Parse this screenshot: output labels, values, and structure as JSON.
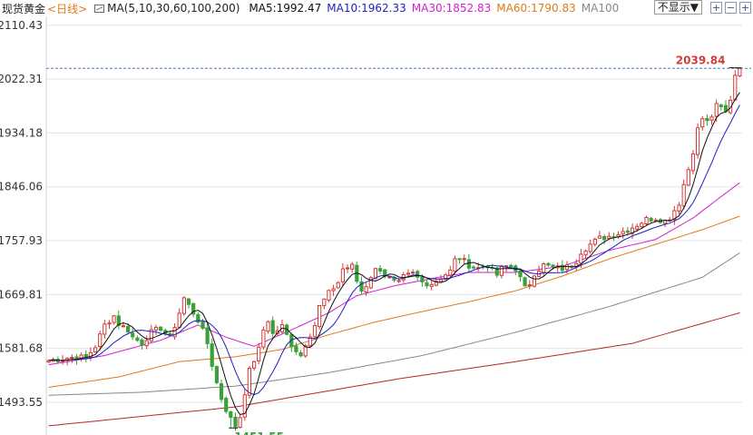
{
  "legend": {
    "instrument": "现货黄金",
    "period": "<日线>",
    "ma_main": "MA(5,10,30,60,100,200)",
    "items": [
      {
        "label": "MA5:1992.47",
        "color": "#111111"
      },
      {
        "label": "MA10:1962.33",
        "color": "#1f1fbf"
      },
      {
        "label": "MA30:1852.83",
        "color": "#d21ed2"
      },
      {
        "label": "MA60:1790.83",
        "color": "#e07b1a"
      },
      {
        "label": "MA100",
        "color": "#888888"
      }
    ]
  },
  "controls": {
    "dropdown_label": "不显示▼",
    "buttons": [
      "zoom-in",
      "zoom-out",
      "fit"
    ]
  },
  "colors": {
    "up": "#d23a3a",
    "down": "#3aa03a",
    "ma5": "#111111",
    "ma10": "#1f1fbf",
    "ma30": "#d21ed2",
    "ma60": "#e07b1a",
    "ma100": "#888888",
    "ma200": "#b42828",
    "grid": "#e3e3e3",
    "last_line": "#4a7ab8",
    "axis_text": "#333333",
    "high_label": "#d23a3a",
    "low_label": "#3aa03a"
  },
  "chart_data": {
    "type": "candlestick",
    "title": "现货黄金 <日线>",
    "ylim": [
      1440,
      2125
    ],
    "y_ticks": [
      2110.43,
      2022.31,
      1934.18,
      1846.06,
      1757.93,
      1669.81,
      1581.68,
      1493.55
    ],
    "grid": true,
    "last_value": 2039.84,
    "high_label": "2039.84",
    "low_label": "1451.55",
    "series_ma": [
      {
        "name": "MA5",
        "value": 1992.47
      },
      {
        "name": "MA10",
        "value": 1962.33
      },
      {
        "name": "MA30",
        "value": 1852.83
      },
      {
        "name": "MA60",
        "value": 1790.83
      },
      {
        "name": "MA100"
      },
      {
        "name": "MA200"
      }
    ],
    "close_path": [
      [
        0,
        1562
      ],
      [
        6,
        1568
      ],
      [
        8,
        1566
      ],
      [
        10,
        1585
      ],
      [
        12,
        1620
      ],
      [
        14,
        1635
      ],
      [
        15,
        1622
      ],
      [
        17,
        1612
      ],
      [
        18,
        1600
      ],
      [
        20,
        1590
      ],
      [
        22,
        1608
      ],
      [
        24,
        1615
      ],
      [
        26,
        1598
      ],
      [
        28,
        1640
      ],
      [
        29,
        1664
      ],
      [
        30,
        1652
      ],
      [
        32,
        1628
      ],
      [
        33,
        1610
      ],
      [
        34,
        1590
      ],
      [
        35,
        1555
      ],
      [
        36,
        1525
      ],
      [
        37,
        1500
      ],
      [
        38,
        1482
      ],
      [
        39,
        1466
      ],
      [
        40,
        1455
      ],
      [
        41,
        1470
      ],
      [
        42,
        1510
      ],
      [
        43,
        1545
      ],
      [
        45,
        1580
      ],
      [
        46,
        1612
      ],
      [
        47,
        1628
      ],
      [
        48,
        1605
      ],
      [
        50,
        1618
      ],
      [
        52,
        1588
      ],
      [
        54,
        1570
      ],
      [
        55,
        1590
      ],
      [
        57,
        1620
      ],
      [
        58,
        1650
      ],
      [
        60,
        1672
      ],
      [
        62,
        1690
      ],
      [
        63,
        1712
      ],
      [
        65,
        1716
      ],
      [
        66,
        1692
      ],
      [
        67,
        1676
      ],
      [
        68,
        1685
      ],
      [
        69,
        1700
      ],
      [
        70,
        1710
      ],
      [
        71,
        1712
      ],
      [
        72,
        1702
      ],
      [
        74,
        1690
      ],
      [
        75,
        1688
      ],
      [
        76,
        1698
      ],
      [
        78,
        1704
      ],
      [
        80,
        1690
      ],
      [
        82,
        1688
      ],
      [
        84,
        1698
      ],
      [
        86,
        1708
      ],
      [
        87,
        1726
      ],
      [
        88,
        1730
      ],
      [
        90,
        1718
      ],
      [
        92,
        1713
      ],
      [
        94,
        1718
      ],
      [
        95,
        1708
      ],
      [
        96,
        1702
      ],
      [
        97,
        1713
      ],
      [
        98,
        1716
      ],
      [
        99,
        1715
      ],
      [
        100,
        1712
      ],
      [
        101,
        1696
      ],
      [
        102,
        1680
      ],
      [
        103,
        1688
      ],
      [
        104,
        1705
      ],
      [
        106,
        1718
      ],
      [
        108,
        1714
      ],
      [
        110,
        1712
      ],
      [
        112,
        1718
      ],
      [
        113,
        1725
      ],
      [
        114,
        1740
      ],
      [
        116,
        1752
      ],
      [
        118,
        1762
      ],
      [
        120,
        1765
      ],
      [
        122,
        1770
      ],
      [
        124,
        1776
      ],
      [
        126,
        1784
      ],
      [
        128,
        1793
      ],
      [
        130,
        1795
      ],
      [
        132,
        1790
      ],
      [
        133,
        1796
      ],
      [
        135,
        1820
      ],
      [
        136,
        1850
      ],
      [
        137,
        1875
      ],
      [
        138,
        1905
      ],
      [
        139,
        1940
      ],
      [
        140,
        1958
      ],
      [
        141,
        1952
      ],
      [
        142,
        1962
      ],
      [
        143,
        1978
      ],
      [
        144,
        1975
      ],
      [
        145,
        1968
      ],
      [
        146,
        1990
      ],
      [
        147,
        2030
      ],
      [
        148,
        2039.84
      ]
    ],
    "ma200": [
      [
        0,
        1455
      ],
      [
        40,
        1486
      ],
      [
        75,
        1532
      ],
      [
        100,
        1560
      ],
      [
        125,
        1590
      ],
      [
        148,
        1640
      ]
    ],
    "ma100": [
      [
        0,
        1505
      ],
      [
        20,
        1510
      ],
      [
        40,
        1520
      ],
      [
        60,
        1542
      ],
      [
        80,
        1570
      ],
      [
        100,
        1608
      ],
      [
        120,
        1650
      ],
      [
        140,
        1698
      ],
      [
        148,
        1738
      ]
    ],
    "ma60": [
      [
        0,
        1518
      ],
      [
        15,
        1535
      ],
      [
        28,
        1560
      ],
      [
        40,
        1568
      ],
      [
        50,
        1580
      ],
      [
        60,
        1604
      ],
      [
        70,
        1625
      ],
      [
        80,
        1642
      ],
      [
        90,
        1658
      ],
      [
        100,
        1676
      ],
      [
        110,
        1700
      ],
      [
        120,
        1728
      ],
      [
        130,
        1752
      ],
      [
        140,
        1776
      ],
      [
        148,
        1798
      ]
    ],
    "ma30": [
      [
        0,
        1555
      ],
      [
        12,
        1570
      ],
      [
        24,
        1595
      ],
      [
        32,
        1620
      ],
      [
        38,
        1600
      ],
      [
        44,
        1585
      ],
      [
        52,
        1612
      ],
      [
        60,
        1640
      ],
      [
        66,
        1668
      ],
      [
        74,
        1684
      ],
      [
        82,
        1696
      ],
      [
        90,
        1706
      ],
      [
        100,
        1706
      ],
      [
        110,
        1716
      ],
      [
        120,
        1742
      ],
      [
        130,
        1760
      ],
      [
        138,
        1795
      ],
      [
        144,
        1830
      ],
      [
        148,
        1852.83
      ]
    ]
  }
}
